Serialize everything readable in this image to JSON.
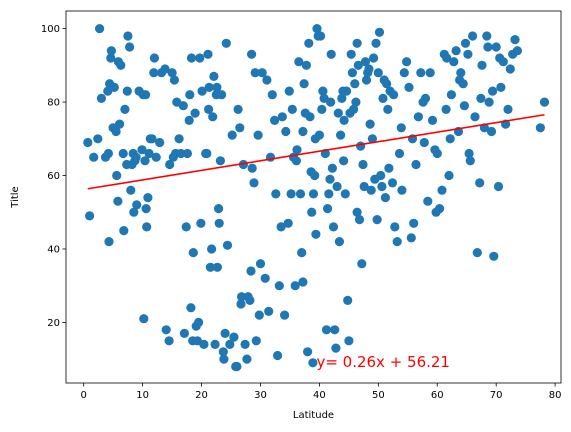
{
  "chart_data": {
    "type": "scatter",
    "xlabel": "Latitude",
    "ylabel": "Title",
    "xlim": [
      -3,
      81
    ],
    "ylim": [
      3.5,
      104.8
    ],
    "xticks": [
      0,
      10,
      20,
      30,
      40,
      50,
      60,
      70,
      80
    ],
    "yticks": [
      20,
      40,
      60,
      80,
      100
    ],
    "grid": false,
    "point_color": "#1f77b4",
    "line_color": "#ff0000",
    "regression": {
      "slope": 0.26,
      "intercept": 56.21,
      "x_range": [
        0.7,
        78.2
      ]
    },
    "annotation": {
      "text": "y= 0.26x + 56.21",
      "x": 39.5,
      "y": 9.5,
      "color": "#ff0000"
    },
    "series": [
      {
        "points": [
          [
            0.7,
            69
          ],
          [
            1,
            49
          ],
          [
            1.7,
            65
          ],
          [
            2.4,
            70
          ],
          [
            2.7,
            100
          ],
          [
            3,
            81
          ],
          [
            3.7,
            65
          ],
          [
            4.1,
            83
          ],
          [
            4.2,
            66
          ],
          [
            4.3,
            42
          ],
          [
            4.4,
            85
          ],
          [
            4.6,
            92
          ],
          [
            4.7,
            94
          ],
          [
            5,
            73
          ],
          [
            5.2,
            84
          ],
          [
            5.5,
            72
          ],
          [
            5.6,
            60
          ],
          [
            5.8,
            53
          ],
          [
            5.9,
            91
          ],
          [
            6.1,
            74
          ],
          [
            6.3,
            90
          ],
          [
            6.7,
            66
          ],
          [
            6.8,
            45
          ],
          [
            7,
            78
          ],
          [
            7.3,
            63
          ],
          [
            7.4,
            83
          ],
          [
            7.5,
            98
          ],
          [
            7.8,
            95
          ],
          [
            8,
            56
          ],
          [
            8.2,
            63
          ],
          [
            8.4,
            66
          ],
          [
            8.5,
            50
          ],
          [
            8.7,
            64
          ],
          [
            8.9,
            65
          ],
          [
            9,
            52
          ],
          [
            9.4,
            83
          ],
          [
            9.9,
            67
          ],
          [
            10.1,
            82
          ],
          [
            10.2,
            21
          ],
          [
            10.4,
            64
          ],
          [
            10.5,
            82
          ],
          [
            10.6,
            51
          ],
          [
            10.7,
            46
          ],
          [
            10.9,
            54
          ],
          [
            11.1,
            66
          ],
          [
            11.3,
            70
          ],
          [
            11.6,
            70
          ],
          [
            11.9,
            88
          ],
          [
            12,
            92
          ],
          [
            12.3,
            65
          ],
          [
            12.9,
            69
          ],
          [
            13.2,
            88
          ],
          [
            13.8,
            89
          ],
          [
            14,
            18
          ],
          [
            14.5,
            15
          ],
          [
            14.6,
            63
          ],
          [
            15,
            88
          ],
          [
            15.2,
            65
          ],
          [
            15.4,
            86
          ],
          [
            15.6,
            66
          ],
          [
            15.8,
            80
          ],
          [
            16.2,
            70
          ],
          [
            16.5,
            66
          ],
          [
            16.9,
            79
          ],
          [
            17.1,
            17
          ],
          [
            17.4,
            46
          ],
          [
            17.6,
            66
          ],
          [
            17.9,
            75
          ],
          [
            18,
            82
          ],
          [
            18.2,
            24
          ],
          [
            18.3,
            92
          ],
          [
            18.5,
            15
          ],
          [
            18.6,
            39
          ],
          [
            18.9,
            77
          ],
          [
            19.1,
            19
          ],
          [
            19.3,
            15
          ],
          [
            19.5,
            20
          ],
          [
            19.7,
            92
          ],
          [
            19.9,
            47
          ],
          [
            20.1,
            83
          ],
          [
            20.4,
            14
          ],
          [
            20.7,
            66
          ],
          [
            20.9,
            66
          ],
          [
            21.1,
            93
          ],
          [
            21.2,
            78
          ],
          [
            21.3,
            84
          ],
          [
            21.5,
            35
          ],
          [
            21.7,
            40
          ],
          [
            21.9,
            76
          ],
          [
            22.1,
            87
          ],
          [
            22.3,
            14
          ],
          [
            22.5,
            82
          ],
          [
            22.6,
            84
          ],
          [
            22.7,
            35
          ],
          [
            22.9,
            51
          ],
          [
            23,
            47
          ],
          [
            23.2,
            64
          ],
          [
            23.4,
            82
          ],
          [
            23.7,
            12
          ],
          [
            23.8,
            10
          ],
          [
            24,
            17
          ],
          [
            24.2,
            96
          ],
          [
            24.4,
            41
          ],
          [
            24.8,
            14
          ],
          [
            25.2,
            71
          ],
          [
            25.5,
            16
          ],
          [
            25.8,
            8
          ],
          [
            26,
            8
          ],
          [
            26.2,
            78
          ],
          [
            26.5,
            73
          ],
          [
            26.7,
            25
          ],
          [
            26.8,
            27
          ],
          [
            27.1,
            63
          ],
          [
            27.4,
            14
          ],
          [
            27.7,
            10
          ],
          [
            27.9,
            27
          ],
          [
            28.2,
            26
          ],
          [
            28.4,
            34
          ],
          [
            28.5,
            93
          ],
          [
            28.6,
            62
          ],
          [
            28.9,
            58
          ],
          [
            29.1,
            88
          ],
          [
            29.3,
            15
          ],
          [
            29.6,
            71
          ],
          [
            29.8,
            22
          ],
          [
            30,
            36
          ],
          [
            30.3,
            88
          ],
          [
            30.8,
            32
          ],
          [
            31.1,
            86
          ],
          [
            31.4,
            23
          ],
          [
            31.7,
            65
          ],
          [
            32,
            82
          ],
          [
            32.4,
            75
          ],
          [
            32.6,
            55
          ],
          [
            32.9,
            11
          ],
          [
            33.2,
            30
          ],
          [
            33.5,
            46
          ],
          [
            33.7,
            76
          ],
          [
            34.1,
            22
          ],
          [
            34.3,
            72
          ],
          [
            34.7,
            47
          ],
          [
            34.9,
            83
          ],
          [
            35.2,
            55
          ],
          [
            35.4,
            78
          ],
          [
            35.6,
            65
          ],
          [
            35.9,
            30
          ],
          [
            36.2,
            67
          ],
          [
            36.5,
            91
          ],
          [
            36.8,
            55
          ],
          [
            37,
            39
          ],
          [
            37.2,
            31
          ],
          [
            37.4,
            85
          ],
          [
            37.6,
            77
          ],
          [
            37.8,
            90
          ],
          [
            38,
            12
          ],
          [
            38.2,
            96
          ],
          [
            38.4,
            76
          ],
          [
            38.6,
            61
          ],
          [
            38.7,
            50
          ],
          [
            38.9,
            9
          ],
          [
            39,
            55
          ],
          [
            39.2,
            60
          ],
          [
            39.4,
            44
          ],
          [
            39.6,
            100
          ],
          [
            39.8,
            98
          ],
          [
            40,
            71
          ],
          [
            40.2,
            98
          ],
          [
            40.4,
            78
          ],
          [
            40.6,
            83
          ],
          [
            40.8,
            81
          ],
          [
            41,
            66
          ],
          [
            41.2,
            18
          ],
          [
            41.4,
            51
          ],
          [
            41.6,
            55
          ],
          [
            41.8,
            59
          ],
          [
            42,
            93
          ],
          [
            42.2,
            62
          ],
          [
            42.4,
            46
          ],
          [
            42.6,
            18
          ],
          [
            42.8,
            13
          ],
          [
            43,
            57
          ],
          [
            43.2,
            77
          ],
          [
            43.4,
            42
          ],
          [
            43.6,
            71
          ],
          [
            43.8,
            81
          ],
          [
            44,
            83
          ],
          [
            44.2,
            75
          ],
          [
            44.4,
            55
          ],
          [
            44.6,
            83
          ],
          [
            44.8,
            26
          ],
          [
            45,
            15
          ],
          [
            45.2,
            77
          ],
          [
            45.4,
            93
          ],
          [
            45.6,
            88
          ],
          [
            45.8,
            78
          ],
          [
            46,
            85
          ],
          [
            46.2,
            80
          ],
          [
            46.4,
            96
          ],
          [
            46.6,
            90
          ],
          [
            46.8,
            48
          ],
          [
            47,
            68
          ],
          [
            47.2,
            36
          ],
          [
            47.4,
            63
          ],
          [
            47.6,
            57
          ],
          [
            47.8,
            91
          ],
          [
            48,
            86
          ],
          [
            48.2,
            88
          ],
          [
            48.4,
            89
          ],
          [
            48.6,
            74
          ],
          [
            48.8,
            56
          ],
          [
            49,
            70
          ],
          [
            49.2,
            92
          ],
          [
            49.4,
            59
          ],
          [
            49.6,
            96
          ],
          [
            49.8,
            48
          ],
          [
            50,
            88
          ],
          [
            50.2,
            99
          ],
          [
            50.4,
            60
          ],
          [
            50.6,
            57
          ],
          [
            50.8,
            81
          ],
          [
            51,
            86
          ],
          [
            51.2,
            54
          ],
          [
            51.4,
            85
          ],
          [
            51.6,
            78
          ],
          [
            51.8,
            62
          ],
          [
            52,
            83
          ],
          [
            52.4,
            58
          ],
          [
            52.8,
            46
          ],
          [
            53.2,
            42
          ],
          [
            53.6,
            66
          ],
          [
            54,
            56
          ],
          [
            54.4,
            88
          ],
          [
            54.8,
            91
          ],
          [
            55.2,
            84
          ],
          [
            55.6,
            43
          ],
          [
            56,
            47
          ],
          [
            56.4,
            63
          ],
          [
            56.8,
            76
          ],
          [
            57.2,
            88
          ],
          [
            57.6,
            80
          ],
          [
            58,
            81
          ],
          [
            58.4,
            53
          ],
          [
            58.8,
            88
          ],
          [
            59.2,
            75
          ],
          [
            59.6,
            67
          ],
          [
            60,
            66
          ],
          [
            60.4,
            51
          ],
          [
            60.8,
            56
          ],
          [
            61.2,
            93
          ],
          [
            61.6,
            92
          ],
          [
            62,
            60
          ],
          [
            62.4,
            82
          ],
          [
            62.8,
            91
          ],
          [
            63.2,
            94
          ],
          [
            63.6,
            72
          ],
          [
            64,
            88
          ],
          [
            64.4,
            85
          ],
          [
            64.8,
            96
          ],
          [
            65.2,
            93
          ],
          [
            65.6,
            64
          ],
          [
            66,
            98
          ],
          [
            66.4,
            76
          ],
          [
            66.8,
            39
          ],
          [
            67.2,
            58
          ],
          [
            67.6,
            90
          ],
          [
            68,
            73
          ],
          [
            68.4,
            98
          ],
          [
            68.8,
            80
          ],
          [
            69.2,
            72
          ],
          [
            69.6,
            38
          ],
          [
            70,
            95
          ],
          [
            70.4,
            57
          ],
          [
            70.8,
            84
          ],
          [
            71.2,
            91
          ],
          [
            71.6,
            74
          ],
          [
            72,
            78
          ],
          [
            72.4,
            89
          ],
          [
            72.8,
            93
          ],
          [
            73.2,
            97
          ],
          [
            73.6,
            94
          ],
          [
            77.5,
            73
          ],
          [
            78.2,
            80
          ],
          [
            61.5,
            78
          ],
          [
            62.2,
            70
          ],
          [
            63.8,
            86
          ],
          [
            64.6,
            79
          ],
          [
            65.4,
            66
          ],
          [
            67.4,
            81
          ],
          [
            68.6,
            95
          ],
          [
            69.4,
            83
          ],
          [
            70.6,
            92
          ],
          [
            55.8,
            70
          ],
          [
            57.8,
            69
          ],
          [
            59.8,
            50
          ],
          [
            53.9,
            73
          ],
          [
            52.6,
            82
          ],
          [
            46.4,
            50
          ],
          [
            44.1,
            64
          ],
          [
            41.9,
            80
          ],
          [
            39.3,
            70
          ],
          [
            37.2,
            72
          ],
          [
            36.1,
            64
          ]
        ]
      }
    ]
  }
}
